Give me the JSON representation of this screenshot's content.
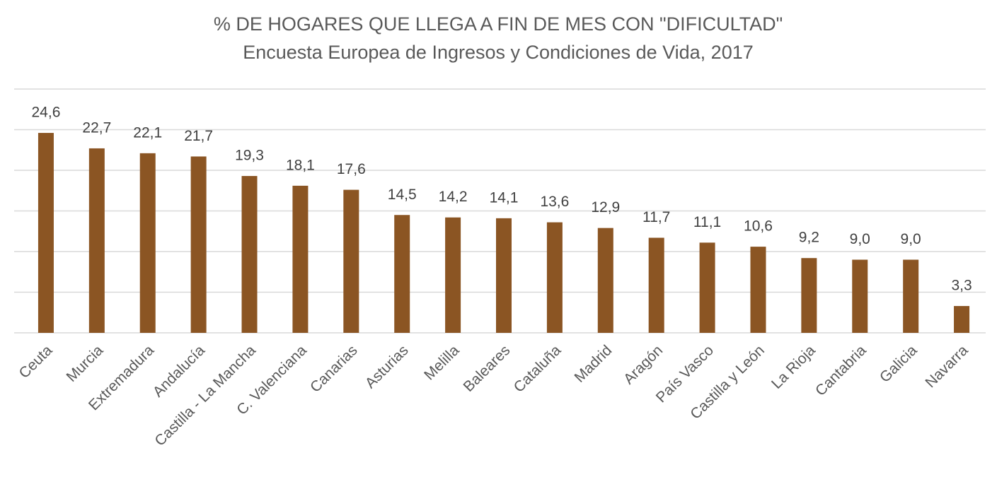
{
  "chart_data": {
    "type": "bar",
    "title": "% DE HOGARES QUE LLEGA A FIN DE MES CON \"DIFICULTAD\"",
    "subtitle": "Encuesta Europea de Ingresos y Condiciones de Vida, 2017",
    "categories": [
      "Ceuta",
      "Murcia",
      "Extremadura",
      "Andalucía",
      "Castilla - La Mancha",
      "C. Valenciana",
      "Canarias",
      "Asturias",
      "Melilla",
      "Baleares",
      "Cataluña",
      "Madrid",
      "Aragón",
      "País Vasco",
      "Castilla y León",
      "La Rioja",
      "Cantabria",
      "Galicia",
      "Navarra"
    ],
    "values": [
      24.6,
      22.7,
      22.1,
      21.7,
      19.3,
      18.1,
      17.6,
      14.5,
      14.2,
      14.1,
      13.6,
      12.9,
      11.7,
      11.1,
      10.6,
      9.2,
      9.0,
      9.0,
      3.3
    ],
    "value_labels": [
      "24,6",
      "22,7",
      "22,1",
      "21,7",
      "19,3",
      "18,1",
      "17,6",
      "14,5",
      "14,2",
      "14,1",
      "13,6",
      "12,9",
      "11,7",
      "11,1",
      "10,6",
      "9,2",
      "9,0",
      "9,0",
      "3,3"
    ],
    "color": "#8b5523",
    "ylim": [
      0,
      30
    ],
    "yticks": [
      0,
      5,
      10,
      15,
      20,
      25,
      30
    ],
    "grid": true
  }
}
